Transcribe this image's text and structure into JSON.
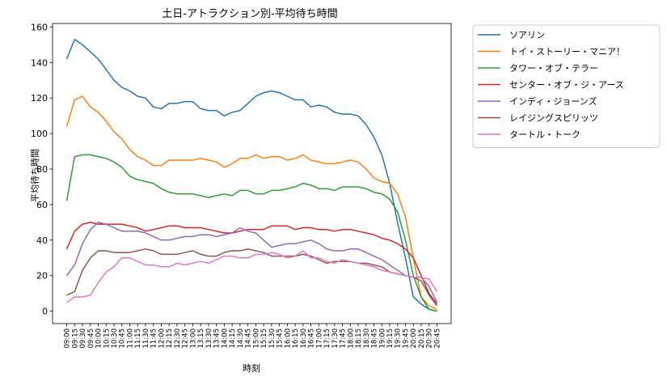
{
  "chart_data": {
    "type": "line",
    "title": "土日-アトラクション別-平均待ち時間",
    "xlabel": "時刻",
    "ylabel": "平均待ち時間",
    "ylim": [
      -7,
      162
    ],
    "yticks": [
      0,
      20,
      40,
      60,
      80,
      100,
      120,
      140,
      160
    ],
    "grid": false,
    "legend_position": "outside-upper-right",
    "categories": [
      "09:00",
      "09:15",
      "09:30",
      "09:45",
      "10:00",
      "10:15",
      "10:30",
      "10:45",
      "11:00",
      "11:15",
      "11:30",
      "11:45",
      "12:00",
      "12:15",
      "12:30",
      "12:45",
      "13:00",
      "13:15",
      "13:30",
      "13:45",
      "14:00",
      "14:15",
      "14:30",
      "14:45",
      "15:00",
      "15:15",
      "15:30",
      "15:45",
      "16:00",
      "16:15",
      "16:30",
      "16:45",
      "17:00",
      "17:15",
      "17:30",
      "17:45",
      "18:00",
      "18:15",
      "18:30",
      "18:45",
      "19:00",
      "19:15",
      "19:30",
      "19:45",
      "20:00",
      "20:15",
      "20:30",
      "20:45"
    ],
    "series": [
      {
        "name": "ソアリン",
        "color": "#1f77b4",
        "values": [
          142,
          153,
          150,
          146,
          142,
          136,
          130,
          126,
          124,
          121,
          120,
          115,
          114,
          117,
          117,
          118,
          118,
          114,
          113,
          113,
          110,
          112,
          113,
          117,
          121,
          123,
          124,
          123,
          121,
          119,
          119,
          115,
          116,
          115,
          112,
          111,
          111,
          110,
          105,
          98,
          88,
          72,
          50,
          30,
          8,
          4,
          1,
          0
        ]
      },
      {
        "name": "トイ・ストーリー・マニア！",
        "color": "#ff7f0e",
        "values": [
          104,
          119,
          121,
          115,
          112,
          107,
          101,
          97,
          91,
          87,
          85,
          82,
          82,
          85,
          85,
          85,
          85,
          86,
          85,
          84,
          81,
          83,
          86,
          86,
          88,
          86,
          87,
          87,
          85,
          86,
          88,
          85,
          84,
          83,
          83,
          84,
          85,
          84,
          80,
          75,
          73,
          72,
          66,
          53,
          30,
          8,
          3,
          1
        ]
      },
      {
        "name": "タワー・オブ・テラー",
        "color": "#2ca02c",
        "values": [
          62,
          87,
          88,
          88,
          87,
          86,
          84,
          81,
          76,
          74,
          73,
          72,
          69,
          67,
          66,
          66,
          66,
          65,
          64,
          65,
          66,
          65,
          68,
          68,
          66,
          66,
          68,
          68,
          69,
          70,
          72,
          71,
          69,
          69,
          68,
          70,
          70,
          70,
          69,
          67,
          66,
          63,
          56,
          40,
          20,
          8,
          1,
          0
        ]
      },
      {
        "name": "センター・オブ・ジ・アース",
        "color": "#d62728",
        "values": [
          35,
          45,
          49,
          50,
          49,
          49,
          49,
          49,
          48,
          47,
          45,
          46,
          47,
          48,
          48,
          47,
          47,
          47,
          46,
          45,
          44,
          44,
          45,
          46,
          46,
          46,
          48,
          48,
          48,
          46,
          47,
          47,
          46,
          46,
          45,
          46,
          46,
          45,
          44,
          43,
          41,
          40,
          38,
          35,
          30,
          20,
          10,
          4
        ]
      },
      {
        "name": "インディ・ジョーンズ",
        "color": "#9467bd",
        "values": [
          20,
          26,
          38,
          46,
          50,
          49,
          47,
          45,
          45,
          45,
          44,
          42,
          40,
          40,
          41,
          42,
          42,
          43,
          43,
          42,
          43,
          44,
          47,
          45,
          44,
          40,
          36,
          37,
          38,
          38,
          39,
          40,
          38,
          35,
          34,
          34,
          35,
          35,
          33,
          31,
          29,
          26,
          23,
          20,
          19,
          19,
          14,
          5
        ]
      },
      {
        "name": "レイジングスピリッツ",
        "color": "#8c564b",
        "values": [
          9,
          11,
          23,
          30,
          34,
          34,
          33,
          33,
          33,
          34,
          35,
          34,
          32,
          32,
          32,
          33,
          34,
          32,
          31,
          31,
          33,
          34,
          34,
          35,
          34,
          33,
          31,
          31,
          31,
          31,
          32,
          31,
          29,
          27,
          28,
          28,
          28,
          27,
          27,
          26,
          25,
          22,
          21,
          20,
          19,
          17,
          9,
          3
        ]
      },
      {
        "name": "タートル・トーク",
        "color": "#e377c2",
        "values": [
          5,
          8,
          8,
          9,
          16,
          22,
          25,
          30,
          30,
          28,
          26,
          26,
          25,
          25,
          27,
          26,
          27,
          28,
          27,
          29,
          31,
          31,
          30,
          30,
          32,
          32,
          33,
          32,
          30,
          31,
          34,
          30,
          30,
          28,
          27,
          29,
          28,
          27,
          26,
          25,
          23,
          22,
          21,
          20,
          19,
          19,
          18,
          11
        ]
      }
    ]
  }
}
